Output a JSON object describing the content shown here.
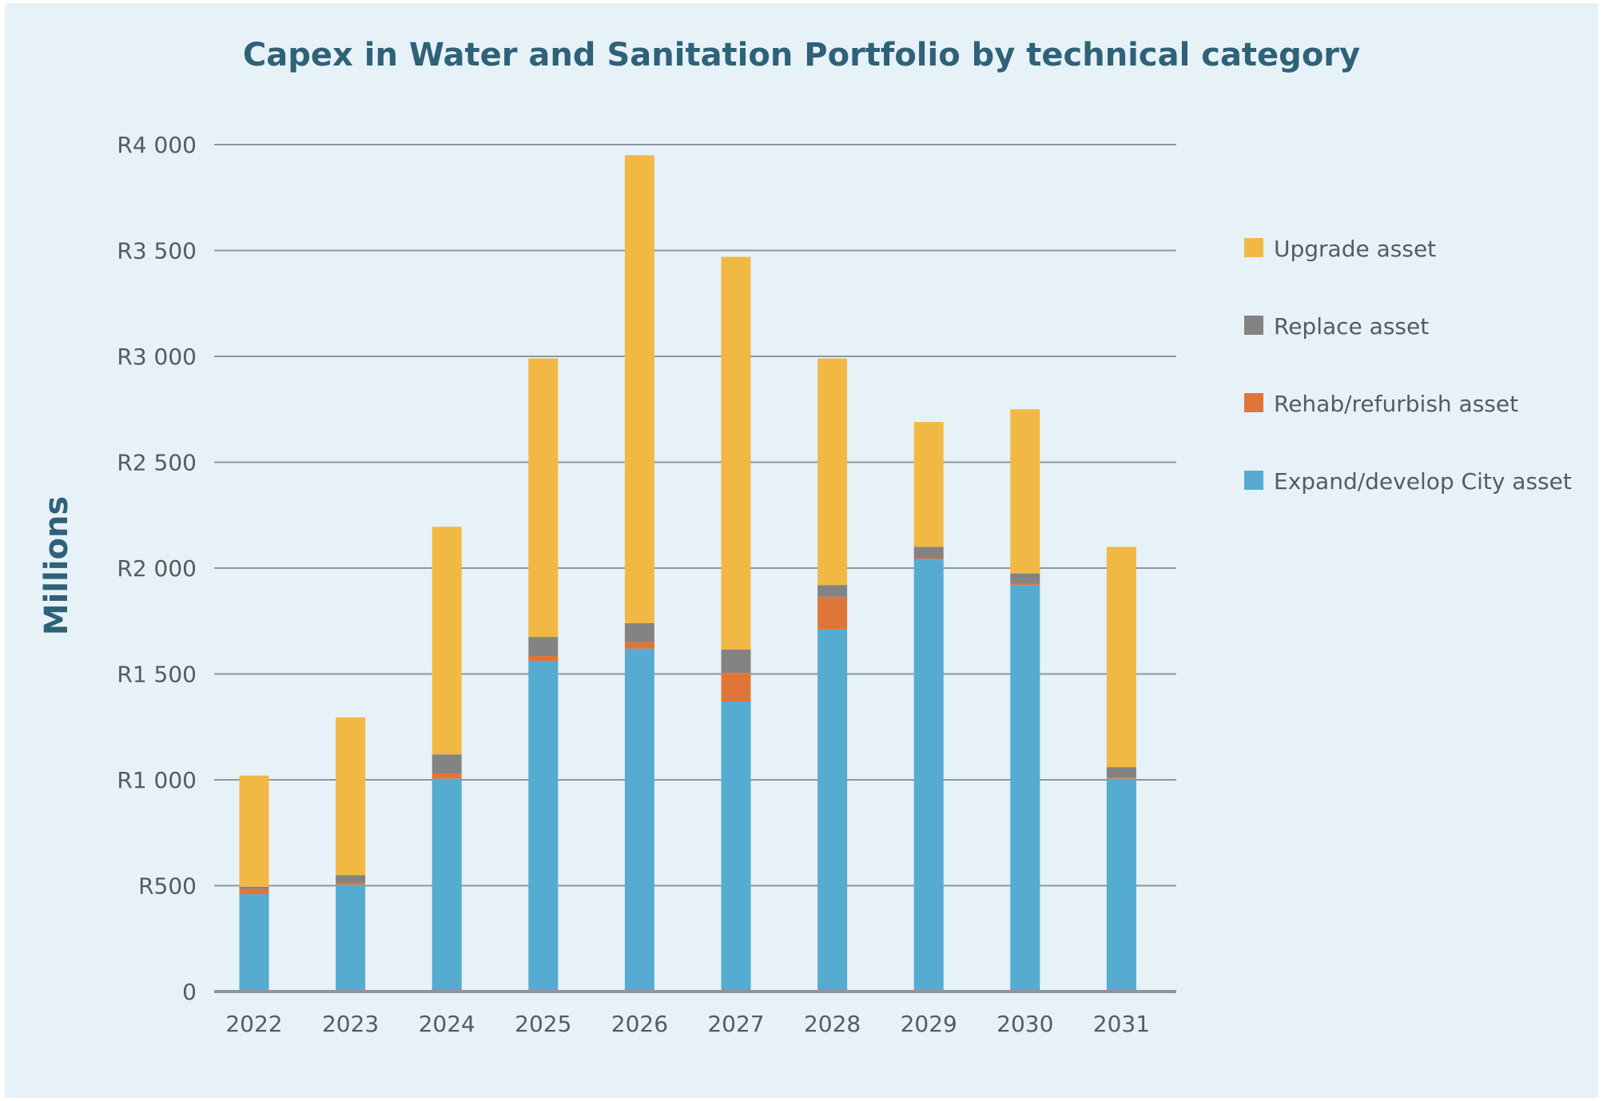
{
  "chart_data": {
    "type": "bar",
    "stacked": true,
    "title": "Capex in Water and Sanitation Portfolio by technical category",
    "xlabel": "",
    "ylabel": "Millions",
    "ylim": [
      0,
      4000
    ],
    "y_ticks": [
      0,
      500,
      1000,
      1500,
      2000,
      2500,
      3000,
      3500,
      4000
    ],
    "y_tick_labels": [
      "0",
      "R500",
      "R1 000",
      "R1 500",
      "R2 000",
      "R2 500",
      "R3 000",
      "R3 500",
      "R4 000"
    ],
    "grid": true,
    "legend_position": "right",
    "categories": [
      "2022",
      "2023",
      "2024",
      "2025",
      "2026",
      "2027",
      "2028",
      "2029",
      "2030",
      "2031"
    ],
    "series": [
      {
        "name": "Expand/develop City asset",
        "color": "#56abd1",
        "values": [
          460,
          505,
          1005,
          1560,
          1620,
          1370,
          1710,
          2040,
          1920,
          1005
        ]
      },
      {
        "name": "Rehab/refurbish asset",
        "color": "#e07538",
        "values": [
          25,
          10,
          25,
          25,
          30,
          135,
          155,
          5,
          5,
          5
        ]
      },
      {
        "name": "Replace asset",
        "color": "#838383",
        "values": [
          10,
          35,
          90,
          90,
          90,
          110,
          55,
          55,
          50,
          50
        ]
      },
      {
        "name": "Upgrade asset",
        "color": "#f1b944",
        "values": [
          525,
          745,
          1075,
          1315,
          2210,
          1855,
          1070,
          590,
          775,
          1040
        ]
      }
    ],
    "legend_order": [
      "Upgrade asset",
      "Replace asset",
      "Rehab/refurbish asset",
      "Expand/develop City asset"
    ]
  },
  "colors": {
    "background": "#e6f2f8",
    "gridline": "#8f969b",
    "axis": "#8f969b",
    "title": "#2f6178",
    "text": "#555b60"
  }
}
